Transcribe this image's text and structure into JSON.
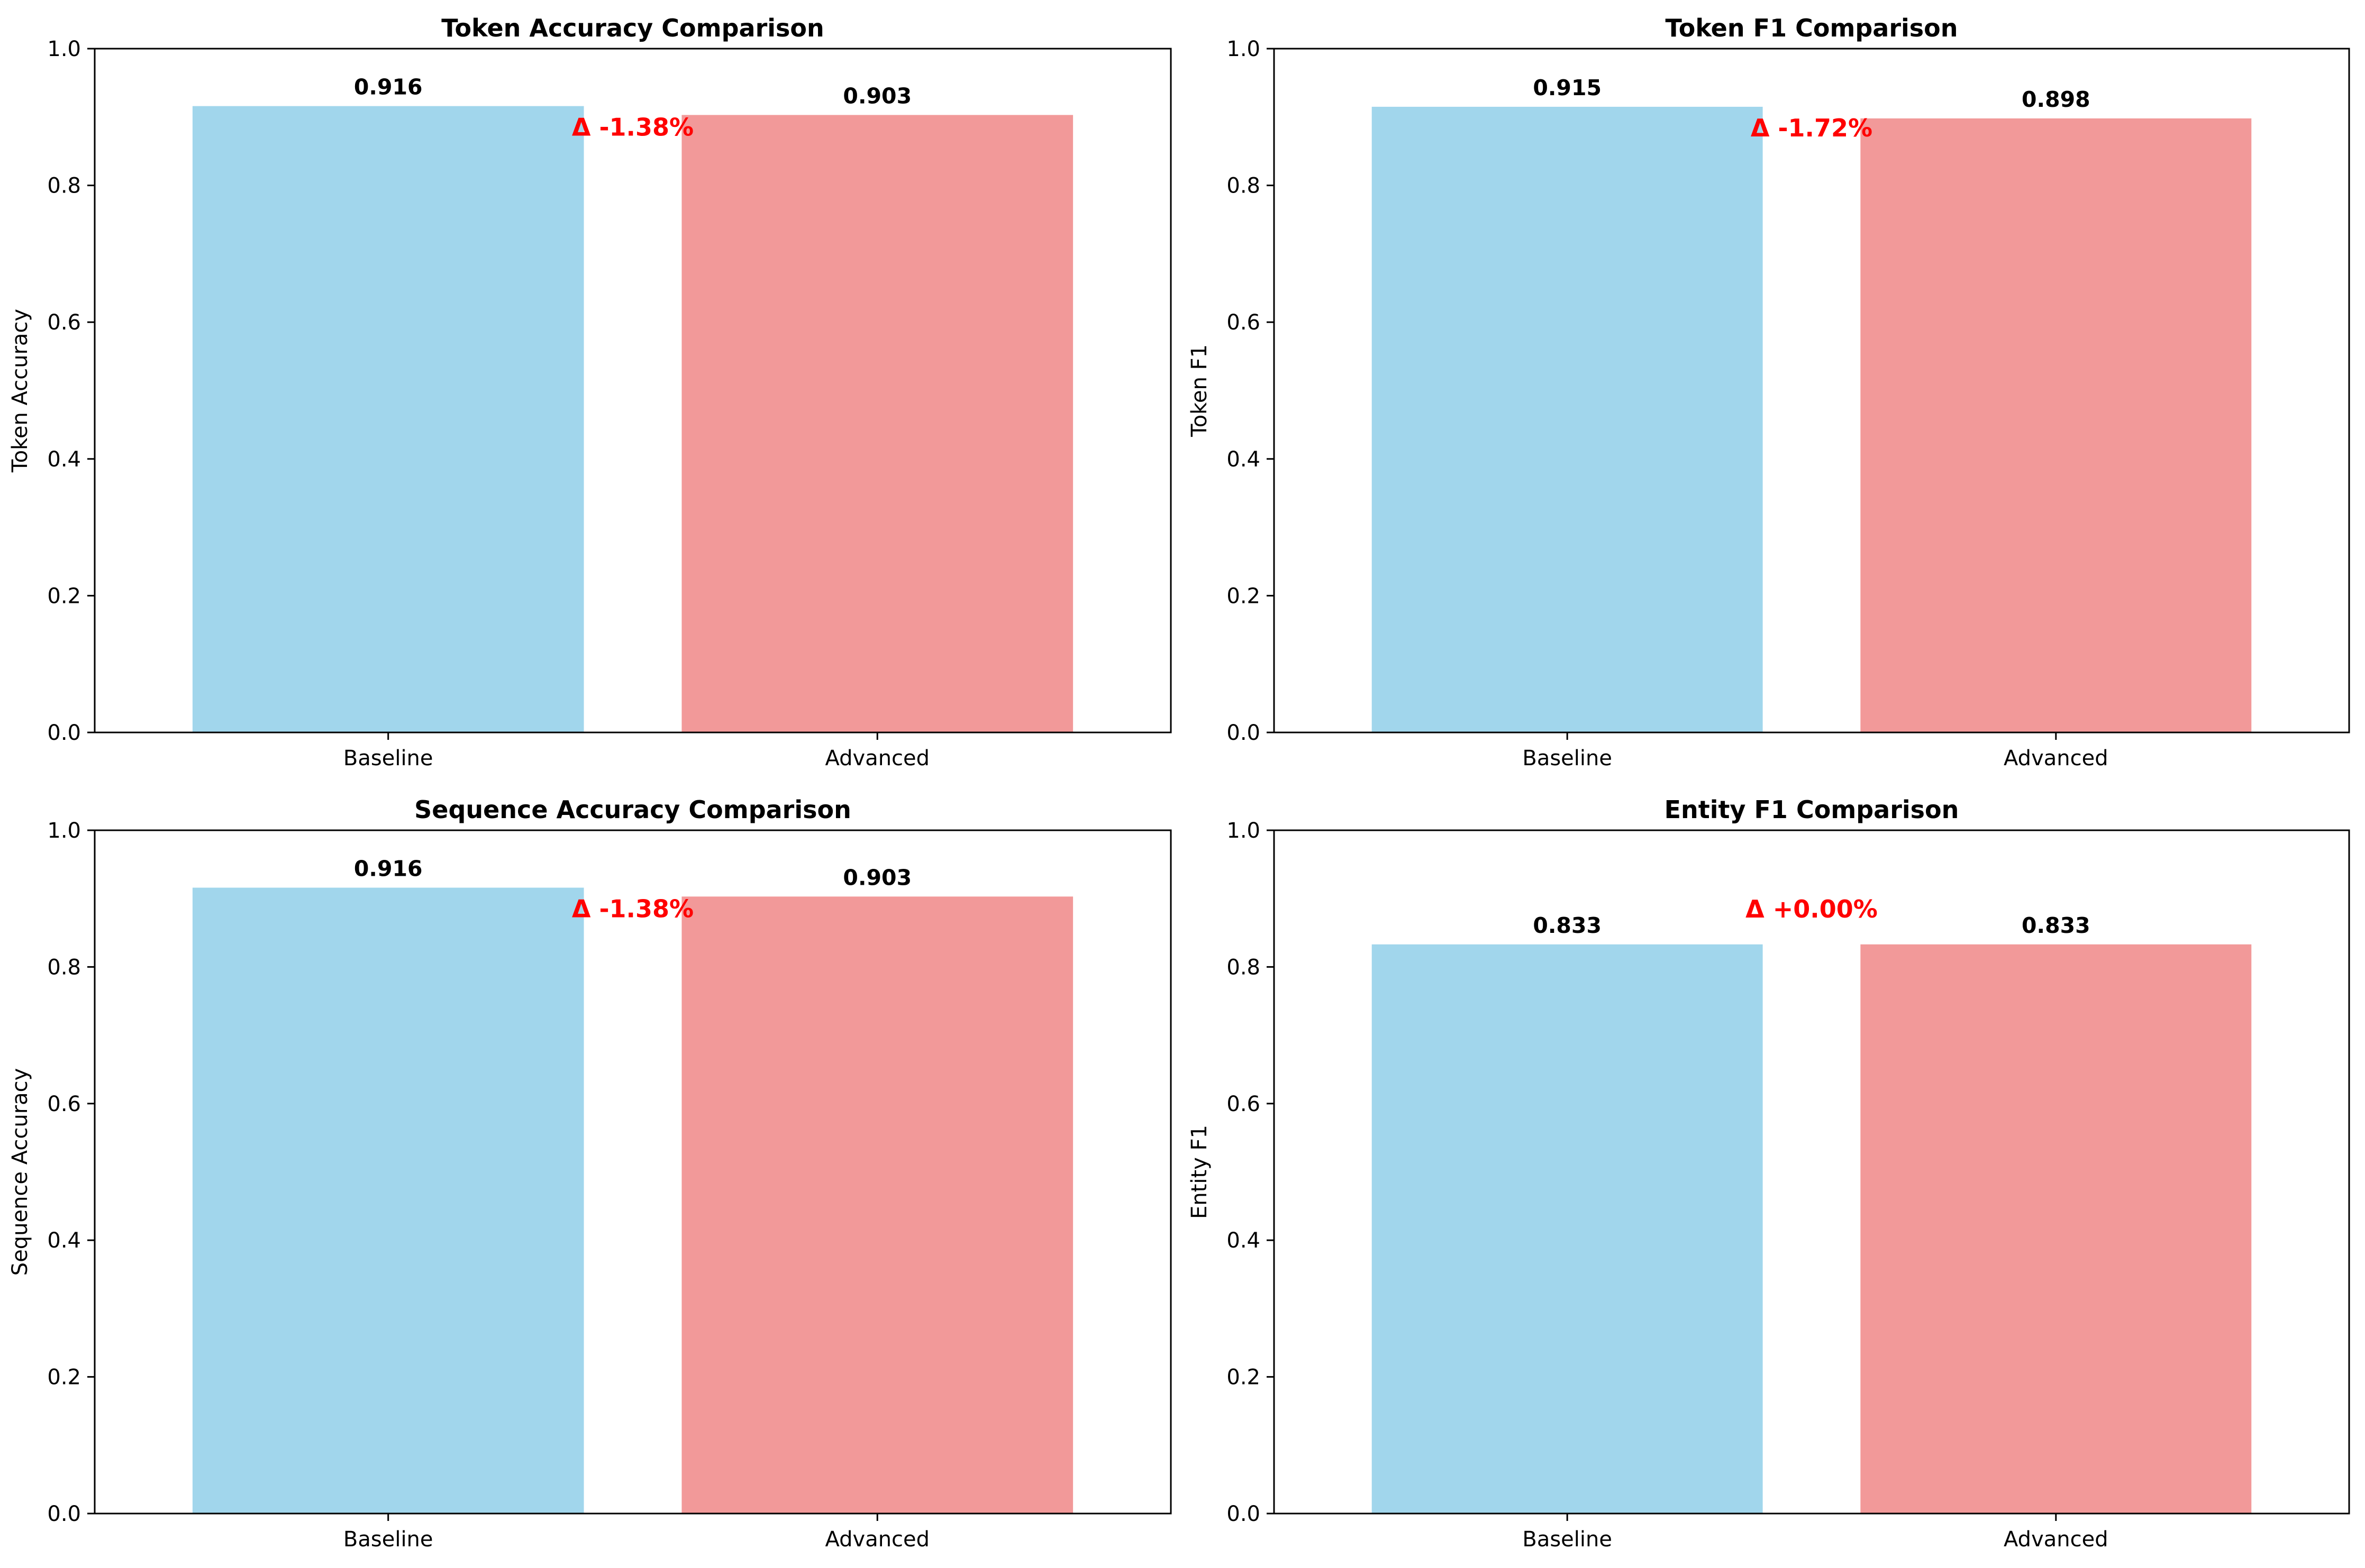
{
  "chart_data": [
    {
      "type": "bar",
      "title": "Token Accuracy Comparison",
      "ylabel": "Token Accuracy",
      "xlabel": "",
      "categories": [
        "Baseline",
        "Advanced"
      ],
      "values": [
        0.916,
        0.903
      ],
      "value_labels": [
        "0.916",
        "0.903"
      ],
      "delta_label": "Δ -1.38%",
      "ylim": [
        0,
        1.0
      ],
      "yticks": [
        "0.0",
        "0.2",
        "0.4",
        "0.6",
        "0.8",
        "1.0"
      ],
      "grid": false
    },
    {
      "type": "bar",
      "title": "Token F1 Comparison",
      "ylabel": "Token F1",
      "xlabel": "",
      "categories": [
        "Baseline",
        "Advanced"
      ],
      "values": [
        0.915,
        0.898
      ],
      "value_labels": [
        "0.915",
        "0.898"
      ],
      "delta_label": "Δ -1.72%",
      "ylim": [
        0,
        1.0
      ],
      "yticks": [
        "0.0",
        "0.2",
        "0.4",
        "0.6",
        "0.8",
        "1.0"
      ],
      "grid": false
    },
    {
      "type": "bar",
      "title": "Sequence Accuracy Comparison",
      "ylabel": "Sequence Accuracy",
      "xlabel": "",
      "categories": [
        "Baseline",
        "Advanced"
      ],
      "values": [
        0.916,
        0.903
      ],
      "value_labels": [
        "0.916",
        "0.903"
      ],
      "delta_label": "Δ -1.38%",
      "ylim": [
        0,
        1.0
      ],
      "yticks": [
        "0.0",
        "0.2",
        "0.4",
        "0.6",
        "0.8",
        "1.0"
      ],
      "grid": false
    },
    {
      "type": "bar",
      "title": "Entity F1 Comparison",
      "ylabel": "Entity F1",
      "xlabel": "",
      "categories": [
        "Baseline",
        "Advanced"
      ],
      "values": [
        0.833,
        0.833
      ],
      "value_labels": [
        "0.833",
        "0.833"
      ],
      "delta_label": "Δ +0.00%",
      "ylim": [
        0,
        1.0
      ],
      "yticks": [
        "0.0",
        "0.2",
        "0.4",
        "0.6",
        "0.8",
        "1.0"
      ],
      "grid": false
    }
  ],
  "colors": {
    "Baseline": "#a1d6ec",
    "Advanced": "#f29999",
    "delta": "#ff0000",
    "axis": "#000000",
    "background": "#ffffff"
  }
}
